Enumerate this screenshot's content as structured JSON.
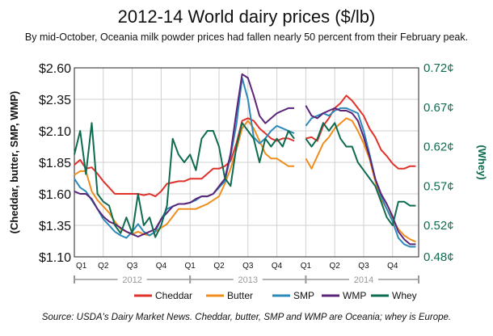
{
  "chart_data": {
    "type": "line",
    "title": "2012-14 World dairy prices ($/lb)",
    "subtitle": "By mid-October, Oceania milk powder prices had fallen nearly 50 percent from their February peak.",
    "source": "Source: USDA's Dairy Market News. Cheddar, butter, SMP and WMP are Oceania; whey is Europe.",
    "ylabel_left": "(Cheddar, butter, SMP, WMP)",
    "ylabel_right": "(Whey)",
    "y_left": {
      "min": 1.1,
      "max": 2.6,
      "ticks": [
        "$2.60",
        "$2.35",
        "$2.10",
        "$1.85",
        "$1.60",
        "$1.35",
        "$1.10"
      ],
      "tick_values": [
        2.6,
        2.35,
        2.1,
        1.85,
        1.6,
        1.35,
        1.1
      ]
    },
    "y_right": {
      "min": 0.48,
      "max": 0.72,
      "ticks": [
        "0.72¢",
        "0.67¢",
        "0.62¢",
        "0.57¢",
        "0.52¢",
        "0.48¢"
      ],
      "tick_values": [
        0.72,
        0.67,
        0.62,
        0.57,
        0.52,
        0.48
      ]
    },
    "x_quarter_labels": [
      "Q1",
      "Q2",
      "Q3",
      "Q4",
      "Q1",
      "Q2",
      "Q3",
      "Q4",
      "Q1",
      "Q2",
      "Q3",
      "Q4"
    ],
    "year_labels": [
      "2012",
      "2013",
      "2014"
    ],
    "x_range": [
      0,
      11.9
    ],
    "grid": true,
    "legend_position": "bottom",
    "series": [
      {
        "name": "Cheddar",
        "color": "#e0312b",
        "axis": "left",
        "x": [
          0,
          0.2,
          0.4,
          0.6,
          0.8,
          1.0,
          1.2,
          1.4,
          1.6,
          1.8,
          2.0,
          2.2,
          2.4,
          2.6,
          2.8,
          3.0,
          3.2,
          3.4,
          3.6,
          3.8,
          4.0,
          4.2,
          4.4,
          4.6,
          4.8,
          5.0,
          5.2,
          5.4,
          5.6,
          5.8,
          6.0,
          6.2,
          6.4,
          6.6,
          6.8,
          7.0,
          7.2,
          7.4,
          7.6,
          7.8,
          8.0,
          8.2,
          8.4,
          8.6,
          8.8,
          9.0,
          9.2,
          9.4,
          9.6,
          9.8,
          10.0,
          10.2,
          10.4,
          10.6,
          10.8,
          11.0,
          11.2,
          11.4,
          11.6,
          11.8
        ],
        "values": [
          1.83,
          1.87,
          1.8,
          1.81,
          1.76,
          1.7,
          1.65,
          1.6,
          1.6,
          1.6,
          1.6,
          1.6,
          1.59,
          1.6,
          1.58,
          1.62,
          1.68,
          1.69,
          1.7,
          1.7,
          1.72,
          1.72,
          1.72,
          1.76,
          1.8,
          1.8,
          1.82,
          1.86,
          2.0,
          2.18,
          2.2,
          2.18,
          2.12,
          2.08,
          2.04,
          2.02,
          2.04,
          2.04,
          2.02,
          null,
          2.04,
          2.05,
          2.02,
          2.14,
          2.2,
          2.28,
          2.32,
          2.38,
          2.34,
          2.28,
          2.22,
          2.12,
          2.05,
          1.95,
          1.9,
          1.84,
          1.8,
          1.8,
          1.82,
          1.82
        ]
      },
      {
        "name": "Butter",
        "color": "#f08d1c",
        "axis": "left",
        "x": [
          0,
          0.2,
          0.4,
          0.6,
          0.8,
          1.0,
          1.2,
          1.4,
          1.6,
          1.8,
          2.0,
          2.2,
          2.4,
          2.6,
          2.8,
          3.0,
          3.2,
          3.4,
          3.6,
          3.8,
          4.0,
          4.2,
          4.4,
          4.6,
          4.8,
          5.0,
          5.2,
          5.4,
          5.6,
          5.8,
          6.0,
          6.2,
          6.4,
          6.6,
          6.8,
          7.0,
          7.2,
          7.4,
          7.6,
          7.8,
          8.0,
          8.2,
          8.4,
          8.6,
          8.8,
          9.0,
          9.2,
          9.4,
          9.6,
          9.8,
          10.0,
          10.2,
          10.4,
          10.6,
          10.8,
          11.0,
          11.2,
          11.4,
          11.6,
          11.8
        ],
        "values": [
          1.75,
          1.78,
          1.78,
          1.62,
          1.55,
          1.5,
          1.45,
          1.38,
          1.32,
          1.3,
          1.28,
          1.3,
          1.28,
          1.27,
          1.3,
          1.33,
          1.36,
          1.42,
          1.48,
          1.48,
          1.48,
          1.48,
          1.5,
          1.52,
          1.55,
          1.58,
          1.68,
          1.8,
          1.95,
          2.12,
          2.18,
          2.12,
          2.02,
          1.92,
          1.88,
          1.88,
          1.85,
          1.82,
          1.82,
          null,
          1.88,
          1.8,
          1.9,
          2.0,
          2.05,
          2.12,
          2.16,
          2.2,
          2.18,
          2.1,
          2.0,
          1.88,
          1.7,
          1.56,
          1.48,
          1.4,
          1.32,
          1.27,
          1.24,
          1.22
        ]
      },
      {
        "name": "SMP",
        "color": "#2c89b8",
        "axis": "left",
        "x": [
          0,
          0.2,
          0.4,
          0.6,
          0.8,
          1.0,
          1.2,
          1.4,
          1.6,
          1.8,
          2.0,
          2.2,
          2.4,
          2.6,
          2.8,
          3.0,
          3.2,
          3.4,
          3.6,
          3.8,
          4.0,
          4.2,
          4.4,
          4.6,
          4.8,
          5.0,
          5.2,
          5.4,
          5.6,
          5.8,
          6.0,
          6.2,
          6.4,
          6.6,
          6.8,
          7.0,
          7.2,
          7.4,
          7.6,
          7.8,
          8.0,
          8.2,
          8.4,
          8.6,
          8.8,
          9.0,
          9.2,
          9.4,
          9.6,
          9.8,
          10.0,
          10.2,
          10.4,
          10.6,
          10.8,
          11.0,
          11.2,
          11.4,
          11.6,
          11.8
        ],
        "values": [
          1.72,
          1.65,
          1.62,
          1.55,
          1.48,
          1.4,
          1.35,
          1.3,
          1.27,
          1.25,
          1.3,
          1.36,
          1.3,
          1.27,
          1.3,
          1.4,
          1.48,
          1.5,
          1.52,
          1.52,
          1.53,
          1.55,
          1.58,
          1.58,
          1.6,
          1.65,
          1.7,
          1.9,
          2.15,
          2.52,
          2.35,
          2.05,
          2.0,
          2.04,
          2.1,
          2.14,
          2.12,
          2.1,
          2.08,
          null,
          2.14,
          2.2,
          2.22,
          2.24,
          2.22,
          2.26,
          2.28,
          2.28,
          2.26,
          2.24,
          2.1,
          1.92,
          1.72,
          1.58,
          1.48,
          1.38,
          1.25,
          1.2,
          1.18,
          1.18
        ]
      },
      {
        "name": "WMP",
        "color": "#5b2479",
        "axis": "left",
        "x": [
          0,
          0.2,
          0.4,
          0.6,
          0.8,
          1.0,
          1.2,
          1.4,
          1.6,
          1.8,
          2.0,
          2.2,
          2.4,
          2.6,
          2.8,
          3.0,
          3.2,
          3.4,
          3.6,
          3.8,
          4.0,
          4.2,
          4.4,
          4.6,
          4.8,
          5.0,
          5.2,
          5.4,
          5.6,
          5.8,
          6.0,
          6.2,
          6.4,
          6.6,
          6.8,
          7.0,
          7.2,
          7.4,
          7.6,
          7.8,
          8.0,
          8.2,
          8.4,
          8.6,
          8.8,
          9.0,
          9.2,
          9.4,
          9.6,
          9.8,
          10.0,
          10.2,
          10.4,
          10.6,
          10.8,
          11.0,
          11.2,
          11.4,
          11.6,
          11.8
        ],
        "values": [
          1.62,
          1.6,
          1.6,
          1.56,
          1.48,
          1.42,
          1.38,
          1.36,
          1.33,
          1.3,
          1.28,
          1.26,
          1.28,
          1.3,
          1.32,
          1.4,
          1.45,
          1.5,
          1.52,
          1.52,
          1.53,
          1.56,
          1.58,
          1.58,
          1.6,
          1.66,
          1.72,
          1.92,
          2.25,
          2.55,
          2.52,
          2.38,
          2.22,
          2.16,
          2.2,
          2.24,
          2.26,
          2.28,
          2.28,
          null,
          2.3,
          2.22,
          2.2,
          2.24,
          2.26,
          2.28,
          2.26,
          2.26,
          2.24,
          2.18,
          2.05,
          1.9,
          1.72,
          1.6,
          1.52,
          1.42,
          1.3,
          1.24,
          1.2,
          1.2
        ]
      },
      {
        "name": "Whey",
        "color": "#0f6b50",
        "axis": "right",
        "x": [
          0,
          0.2,
          0.4,
          0.6,
          0.8,
          1.0,
          1.2,
          1.4,
          1.6,
          1.8,
          2.0,
          2.2,
          2.4,
          2.6,
          2.8,
          3.0,
          3.2,
          3.4,
          3.6,
          3.8,
          4.0,
          4.2,
          4.4,
          4.6,
          4.8,
          5.0,
          5.2,
          5.4,
          5.6,
          5.8,
          6.0,
          6.2,
          6.4,
          6.6,
          6.8,
          7.0,
          7.2,
          7.4,
          7.6,
          7.8,
          8.0,
          8.2,
          8.4,
          8.6,
          8.8,
          9.0,
          9.2,
          9.4,
          9.6,
          9.8,
          10.0,
          10.2,
          10.4,
          10.6,
          10.8,
          11.0,
          11.2,
          11.4,
          11.6,
          11.8
        ],
        "values": [
          0.61,
          0.64,
          0.585,
          0.65,
          0.56,
          0.55,
          0.545,
          0.52,
          0.51,
          0.53,
          0.51,
          0.56,
          0.52,
          0.53,
          0.505,
          0.52,
          0.545,
          0.63,
          0.61,
          0.6,
          0.61,
          0.59,
          0.63,
          0.64,
          0.64,
          0.62,
          0.58,
          0.57,
          0.62,
          0.65,
          0.64,
          0.63,
          0.6,
          0.63,
          0.62,
          0.63,
          0.62,
          0.64,
          0.63,
          null,
          0.63,
          0.62,
          0.63,
          0.65,
          0.64,
          0.65,
          0.63,
          0.62,
          0.62,
          0.6,
          0.59,
          0.58,
          0.57,
          0.55,
          0.53,
          0.52,
          0.55,
          0.55,
          0.545,
          0.545
        ]
      }
    ]
  }
}
